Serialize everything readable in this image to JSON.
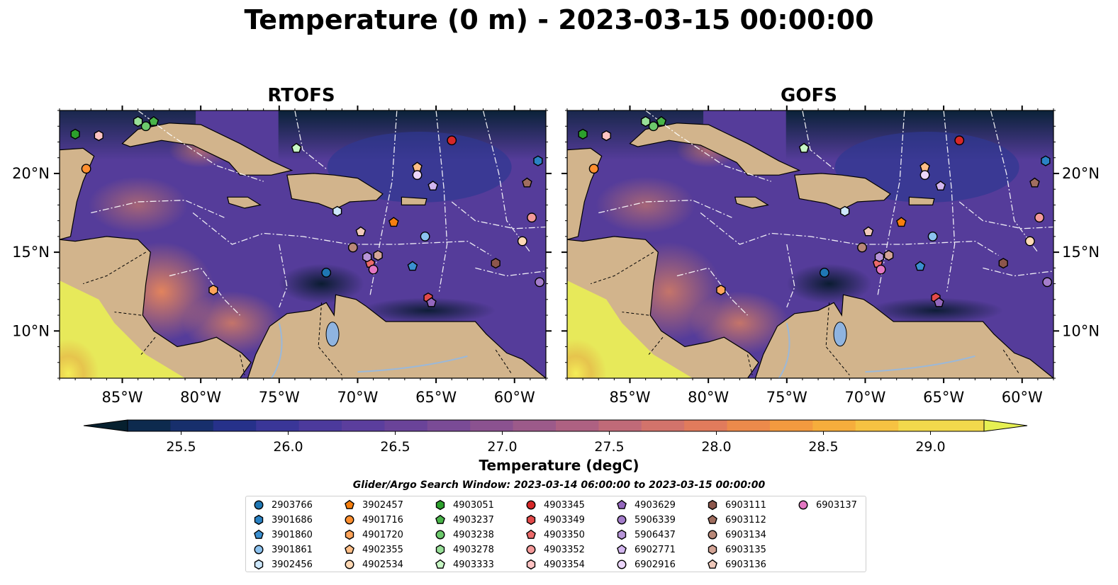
{
  "title": "Temperature (0 m) - 2023-03-15 00:00:00",
  "panels": [
    {
      "title": "RTOFS"
    },
    {
      "title": "GOFS"
    }
  ],
  "colors": {
    "land": "#d2b48c",
    "water_bodies": "#8fb4e0",
    "colormap": [
      "#06202f",
      "#0d2a4e",
      "#172f6c",
      "#26318a",
      "#3a3698",
      "#4c3a9c",
      "#5b3e9d",
      "#6a4399",
      "#7a4b96",
      "#8b5290",
      "#9c5a8a",
      "#ae6182",
      "#c06a78",
      "#d2736b",
      "#e17b5c",
      "#ec8a4b",
      "#f39a3f",
      "#f6ad3c",
      "#f6c242",
      "#f2d94c",
      "#e6f053"
    ]
  },
  "axes": {
    "lat_labels": [
      "20°N",
      "15°N",
      "10°N"
    ],
    "lon_labels": [
      "85°W",
      "80°W",
      "75°W",
      "70°W",
      "65°W",
      "60°W"
    ]
  },
  "chart_data": {
    "type": "heatmap",
    "variable": "Temperature (0 m)",
    "time": "2023-03-15 00:00:00",
    "colorbar": {
      "label": "Temperature (degC)",
      "min": 25.25,
      "max": 29.25,
      "interval": 0.2,
      "ticks": [
        "25.5",
        "26.0",
        "26.5",
        "27.0",
        "27.5",
        "28.0",
        "28.5",
        "29.0"
      ],
      "extend": "both"
    },
    "extent": {
      "lon": [
        -89,
        -58
      ],
      "lat": [
        7,
        24
      ]
    },
    "search_window": "Glider/Argo Search Window: 2023-03-14 06:00:00 to 2023-03-15 00:00:00",
    "floats": [
      {
        "id": "2903766",
        "marker": "circle",
        "color": "#1f77b4",
        "lon": -72,
        "lat": 13.7
      },
      {
        "id": "3901686",
        "marker": "hexagon",
        "color": "#2a82c4",
        "lon": -58.5,
        "lat": 20.8
      },
      {
        "id": "3901860",
        "marker": "pentagon",
        "color": "#3b8fd0",
        "lon": -66.5,
        "lat": 14.1
      },
      {
        "id": "3901861",
        "marker": "circle",
        "color": "#8cc2ef",
        "lon": -65.7,
        "lat": 16.0
      },
      {
        "id": "3902456",
        "marker": "hexagon",
        "color": "#cde7fb",
        "lon": -71.3,
        "lat": 17.6
      },
      {
        "id": "3902457",
        "marker": "pentagon",
        "color": "#f77f0e",
        "lon": -67.7,
        "lat": 16.9
      },
      {
        "id": "4901716",
        "marker": "circle",
        "color": "#ff8f2f",
        "lon": -87.3,
        "lat": 20.3
      },
      {
        "id": "4901720",
        "marker": "hexagon",
        "color": "#ffa45a",
        "lon": -79.2,
        "lat": 12.6
      },
      {
        "id": "4902355",
        "marker": "pentagon",
        "color": "#ffbe87",
        "lon": -66.2,
        "lat": 20.4
      },
      {
        "id": "4902534",
        "marker": "circle",
        "color": "#ffd9b5",
        "lon": -59.5,
        "lat": 15.7
      },
      {
        "id": "4903051",
        "marker": "hexagon",
        "color": "#2ca02c",
        "lon": -88,
        "lat": 22.5
      },
      {
        "id": "4903237",
        "marker": "pentagon",
        "color": "#49b449",
        "lon": -83,
        "lat": 23.3
      },
      {
        "id": "4903238",
        "marker": "circle",
        "color": "#6cc96c",
        "lon": -83.5,
        "lat": 23.0
      },
      {
        "id": "4903278",
        "marker": "hexagon",
        "color": "#98df98",
        "lon": -84,
        "lat": 23.3
      },
      {
        "id": "4903333",
        "marker": "pentagon",
        "color": "#c8f7c5",
        "lon": -73.9,
        "lat": 21.6
      },
      {
        "id": "4903345",
        "marker": "circle",
        "color": "#d62728",
        "lon": -64,
        "lat": 22.1
      },
      {
        "id": "4903349",
        "marker": "hexagon",
        "color": "#e34a4a",
        "lon": -65.5,
        "lat": 12.1
      },
      {
        "id": "4903350",
        "marker": "pentagon",
        "color": "#ec6a6a",
        "lon": -69.2,
        "lat": 14.3
      },
      {
        "id": "4903352",
        "marker": "circle",
        "color": "#f49a9a",
        "lon": -58.9,
        "lat": 17.2
      },
      {
        "id": "4903354",
        "marker": "hexagon",
        "color": "#ffc3c3",
        "lon": -86.5,
        "lat": 22.4
      },
      {
        "id": "4903629",
        "marker": "pentagon",
        "color": "#9467bd",
        "lon": -65.3,
        "lat": 11.8
      },
      {
        "id": "5906339",
        "marker": "circle",
        "color": "#a47dcb",
        "lon": -58.4,
        "lat": 13.1
      },
      {
        "id": "5906437",
        "marker": "hexagon",
        "color": "#b795d8",
        "lon": -69.4,
        "lat": 14.7
      },
      {
        "id": "6902771",
        "marker": "pentagon",
        "color": "#d3b6ef",
        "lon": -65.2,
        "lat": 19.2
      },
      {
        "id": "6902916",
        "marker": "circle",
        "color": "#ecd6fb",
        "lon": -66.2,
        "lat": 19.9
      },
      {
        "id": "6903111",
        "marker": "hexagon",
        "color": "#8c564b",
        "lon": -61.2,
        "lat": 14.3
      },
      {
        "id": "6903112",
        "marker": "pentagon",
        "color": "#a06e5f",
        "lon": -59.2,
        "lat": 19.4
      },
      {
        "id": "6903134",
        "marker": "circle",
        "color": "#b98878",
        "lon": -70.3,
        "lat": 15.3
      },
      {
        "id": "6903135",
        "marker": "hexagon",
        "color": "#d4a597",
        "lon": -68.7,
        "lat": 14.8
      },
      {
        "id": "6903136",
        "marker": "pentagon",
        "color": "#f0c9bb",
        "lon": -69.8,
        "lat": 16.3
      },
      {
        "id": "6903137",
        "marker": "circle",
        "color": "#e377c2",
        "lon": -69.0,
        "lat": 13.9
      }
    ]
  }
}
